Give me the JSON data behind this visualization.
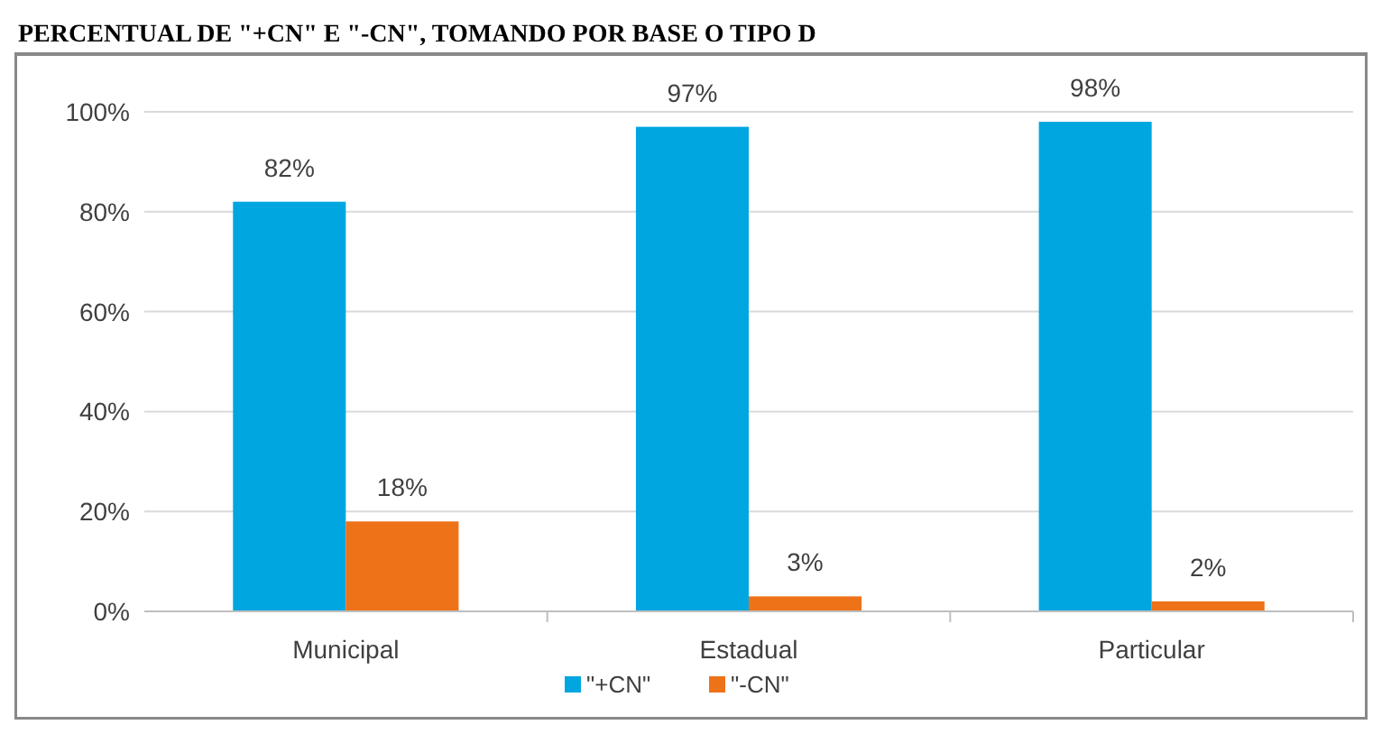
{
  "chart_data": {
    "type": "bar",
    "title": "PERCENTUAL DE \"+CN\" E \"-CN\", TOMANDO POR BASE O TIPO D",
    "categories": [
      "Municipal",
      "Estadual",
      "Particular"
    ],
    "series": [
      {
        "name": "\"+CN\"",
        "color": "#00a6e0",
        "values": [
          82,
          97,
          98
        ],
        "value_labels": [
          "82%",
          "97%",
          "98%"
        ]
      },
      {
        "name": "\"-CN\"",
        "color": "#ee7218",
        "values": [
          18,
          3,
          2
        ],
        "value_labels": [
          "18%",
          "3%",
          "2%"
        ]
      }
    ],
    "ylim": [
      0,
      100
    ],
    "yticks": [
      {
        "value": 0,
        "label": "0%"
      },
      {
        "value": 20,
        "label": "20%"
      },
      {
        "value": 40,
        "label": "40%"
      },
      {
        "value": 60,
        "label": "60%"
      },
      {
        "value": 80,
        "label": "80%"
      },
      {
        "value": 100,
        "label": "100%"
      }
    ],
    "grid": "y",
    "legend": "bottom"
  }
}
